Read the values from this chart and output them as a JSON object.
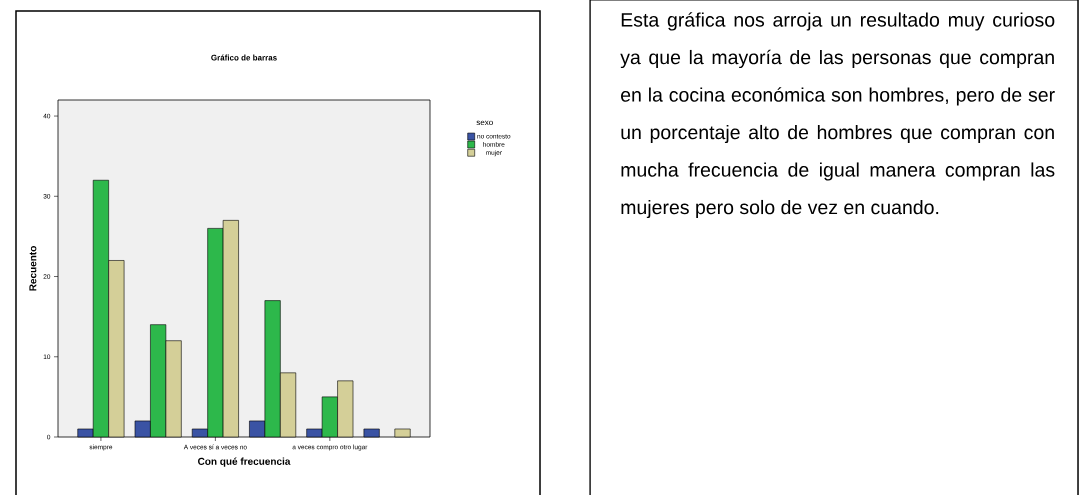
{
  "chart_data": [
    {
      "type": "bar",
      "title": "Gráfico de barras",
      "xlabel": "Con qué frecuencia",
      "ylabel": "Recuento",
      "legend_title": "sexo",
      "legend": "right",
      "grid": false,
      "categories": [
        "siempre",
        null,
        "A veces sí a veces no",
        null,
        "a veces compro otro lugar",
        null
      ],
      "ylim": [
        0,
        42
      ],
      "yticks": [
        0,
        10,
        20,
        30,
        40
      ],
      "series": [
        {
          "name": "no contesto",
          "color": "#3a53a4",
          "values": [
            1,
            2,
            1,
            2,
            1,
            1
          ]
        },
        {
          "name": "hombre",
          "color": "#2db84b",
          "values": [
            32,
            14,
            26,
            17,
            5,
            null
          ]
        },
        {
          "name": "mujer",
          "color": "#d4cf98",
          "values": [
            22,
            12,
            27,
            8,
            7,
            1
          ]
        }
      ]
    },
    {
      "type": "other",
      "annotations": [
        "Esta gráfica nos arroja un resultado muy curioso ya que la mayoría de las personas que compran en la cocina económica son hombres, pero de ser un porcentaje alto de hombres que compran con mucha frecuencia de igual manera compran las mujeres pero solo de vez en cuando."
      ]
    }
  ]
}
